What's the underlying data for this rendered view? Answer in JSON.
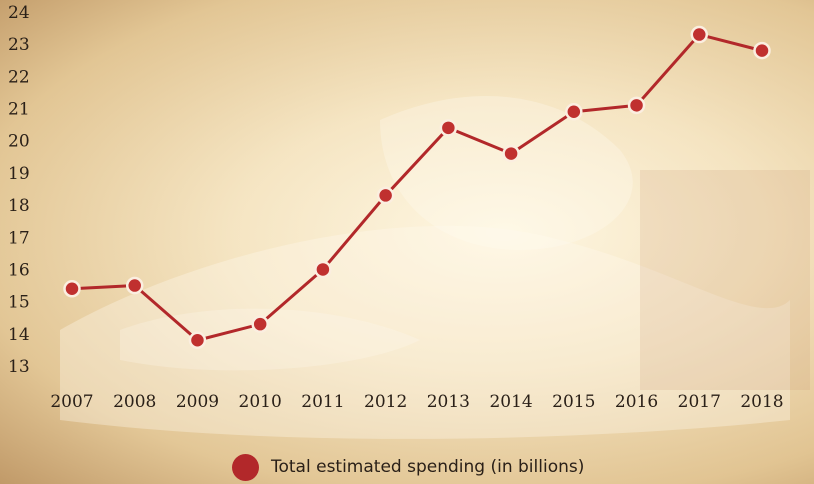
{
  "chart_data": {
    "type": "line",
    "categories": [
      "2007",
      "2008",
      "2009",
      "2010",
      "2011",
      "2012",
      "2013",
      "2014",
      "2015",
      "2016",
      "2017",
      "2018"
    ],
    "series": [
      {
        "name": "Total estimated spending (in billions)",
        "values": [
          15.4,
          15.5,
          13.8,
          14.3,
          16.0,
          18.3,
          20.4,
          19.6,
          20.9,
          21.1,
          23.3,
          22.8
        ]
      }
    ],
    "yticks": [
      "13",
      "14",
      "15",
      "16",
      "17",
      "18",
      "19",
      "20",
      "21",
      "22",
      "23",
      "24"
    ],
    "ylim": [
      13,
      24
    ],
    "title": "",
    "xlabel": "",
    "ylabel": "",
    "grid": false,
    "legend_position": "bottom-center",
    "colors": {
      "line": "#b2282a",
      "marker_fill": "#c0302f",
      "marker_stroke": "#fbeee0"
    }
  }
}
